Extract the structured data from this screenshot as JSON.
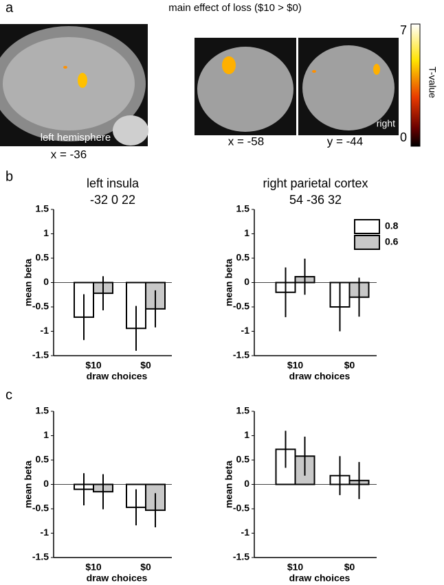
{
  "figure": {
    "panel_labels": [
      "a",
      "b",
      "c"
    ],
    "title": "main effect of loss ($10 > $0)",
    "image_labels": [
      "left hemisphere",
      "x = -36",
      "x = -58",
      "y = -44",
      "right"
    ],
    "colorbar": {
      "max": 7,
      "min": 0,
      "label": "T-value"
    }
  },
  "chart_data": [
    {
      "type": "bar",
      "title": "left insula",
      "subtitle": "-32 0 22",
      "categories": [
        "$10",
        "$0"
      ],
      "xlabel": "draw choices",
      "ylabel": "mean beta",
      "ylim": [
        -1.5,
        1.5
      ],
      "yticks": [
        1.5,
        1,
        0.5,
        0,
        -0.5,
        -1,
        -1.5
      ],
      "series": [
        {
          "color": "#ffffff",
          "values": [
            -0.71,
            -0.94
          ],
          "errors": [
            0.47,
            0.46
          ]
        },
        {
          "color": "#c8c8c8",
          "values": [
            -0.22,
            -0.54
          ],
          "errors": [
            0.35,
            0.38
          ]
        }
      ]
    },
    {
      "type": "bar",
      "title": "right parietal cortex",
      "subtitle": "54 -36 32",
      "categories": [
        "$10",
        "$0"
      ],
      "xlabel": "draw choices",
      "ylabel": "mean beta",
      "ylim": [
        -1.5,
        1.5
      ],
      "yticks": [
        1.5,
        1,
        0.5,
        0,
        -0.5,
        -1,
        -1.5
      ],
      "series": [
        {
          "name": "0.8",
          "color": "#ffffff",
          "values": [
            -0.2,
            -0.5
          ],
          "errors": [
            0.51,
            0.5
          ]
        },
        {
          "name": "0.6",
          "color": "#c8c8c8",
          "values": [
            0.12,
            -0.3
          ],
          "errors": [
            0.37,
            0.4
          ]
        }
      ]
    },
    {
      "type": "bar",
      "categories": [
        "$10",
        "$0"
      ],
      "xlabel": "draw choices",
      "ylabel": "mean beta",
      "ylim": [
        -1.5,
        1.5
      ],
      "yticks": [
        1.5,
        1,
        0.5,
        0,
        -0.5,
        -1,
        -1.5
      ],
      "series": [
        {
          "color": "#ffffff",
          "values": [
            -0.1,
            -0.47
          ],
          "errors": [
            0.33,
            0.37
          ]
        },
        {
          "color": "#c8c8c8",
          "values": [
            -0.15,
            -0.53
          ],
          "errors": [
            0.36,
            0.35
          ]
        }
      ]
    },
    {
      "type": "bar",
      "categories": [
        "$10",
        "$0"
      ],
      "xlabel": "draw choices",
      "ylabel": "mean beta",
      "ylim": [
        -1.5,
        1.5
      ],
      "yticks": [
        1.5,
        1,
        0.5,
        0,
        -0.5,
        -1,
        -1.5
      ],
      "series": [
        {
          "color": "#ffffff",
          "values": [
            0.72,
            0.18
          ],
          "errors": [
            0.38,
            0.4
          ]
        },
        {
          "color": "#c8c8c8",
          "values": [
            0.58,
            0.08
          ],
          "errors": [
            0.4,
            0.38
          ]
        }
      ]
    }
  ]
}
